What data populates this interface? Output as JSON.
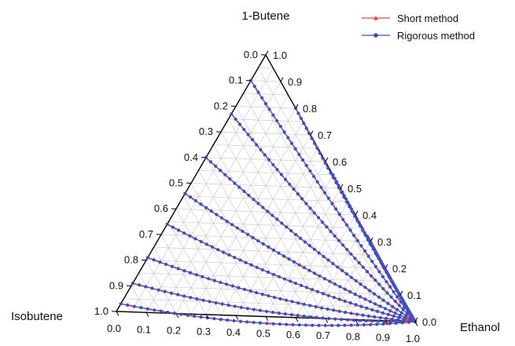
{
  "chart_data": {
    "type": "ternary",
    "vertex_labels": {
      "top": "1-Butene",
      "left": "Isobutene",
      "right": "Ethanol"
    },
    "tick_labels": [
      "0.0",
      "0.1",
      "0.2",
      "0.3",
      "0.4",
      "0.5",
      "0.6",
      "0.7",
      "0.8",
      "0.9",
      "1.0"
    ],
    "grid": true,
    "legend_position": "top-right",
    "series": [
      {
        "name": "Short method",
        "color": "#e8483a",
        "marker": "triangle"
      },
      {
        "name": "Rigorous method",
        "color": "#3b4fc0",
        "marker": "circle"
      }
    ],
    "curves": [
      {
        "start_isobutene": 0.97,
        "bend": 0.55
      },
      {
        "start_isobutene": 0.89,
        "bend": 0.52
      },
      {
        "start_isobutene": 0.79,
        "bend": 0.5
      },
      {
        "start_isobutene": 0.66,
        "bend": 0.47
      },
      {
        "start_isobutene": 0.54,
        "bend": 0.44
      },
      {
        "start_isobutene": 0.4,
        "bend": 0.4
      },
      {
        "start_isobutene": 0.23,
        "bend": 0.34
      },
      {
        "start_isobutene": 0.1,
        "bend": 0.26
      },
      {
        "start_isobutene": 0.0,
        "start_ethanol": 0.2,
        "bend": 0.18
      },
      {
        "start_isobutene": 0.0,
        "start_ethanol": 0.45,
        "bend": 0.12
      },
      {
        "start_isobutene": 0.0,
        "start_ethanol": 0.68,
        "bend": 0.07
      }
    ]
  }
}
